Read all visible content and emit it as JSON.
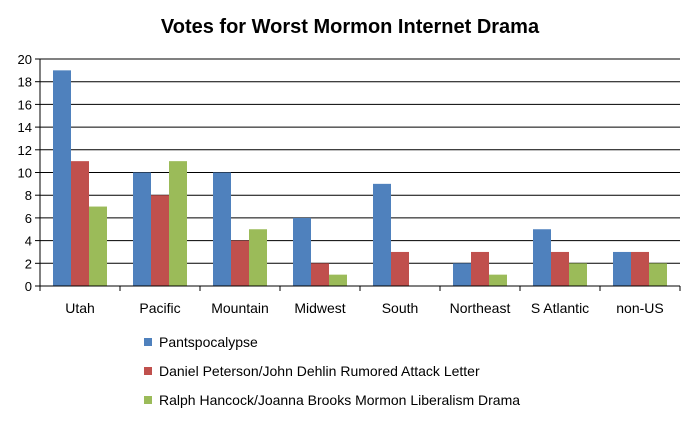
{
  "chart_data": {
    "type": "bar",
    "title": "Votes for Worst Mormon Internet Drama",
    "xlabel": "",
    "ylabel": "",
    "ylim": [
      0,
      20
    ],
    "yticks": [
      0,
      2,
      4,
      6,
      8,
      10,
      12,
      14,
      16,
      18,
      20
    ],
    "grid": true,
    "legend_position": "bottom",
    "categories": [
      "Utah",
      "Pacific",
      "Mountain",
      "Midwest",
      "South",
      "Northeast",
      "S Atlantic",
      "non-US"
    ],
    "series": [
      {
        "name": "Pantspocalypse",
        "color": "#4F81BD",
        "values": [
          19,
          10,
          10,
          6,
          9,
          2,
          5,
          3
        ]
      },
      {
        "name": "Daniel Peterson/John Dehlin Rumored Attack Letter",
        "color": "#C0504D",
        "values": [
          11,
          8,
          4,
          2,
          3,
          3,
          3,
          3
        ]
      },
      {
        "name": "Ralph Hancock/Joanna Brooks Mormon Liberalism Drama",
        "color": "#9BBB59",
        "values": [
          7,
          11,
          5,
          1,
          0,
          1,
          2,
          2
        ]
      }
    ]
  }
}
